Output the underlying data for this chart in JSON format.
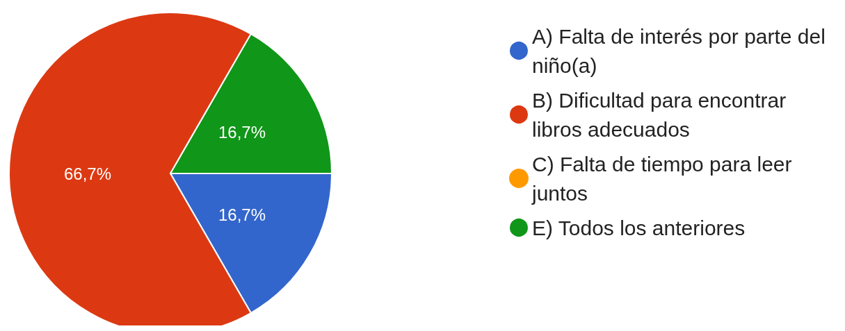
{
  "chart_data": {
    "type": "pie",
    "categories": [
      "A) Falta de interés por parte del niño(a)",
      "B) Dificultad para encontrar libros adecuados",
      "C) Falta de tiempo para leer juntos",
      "E) Todos los anteriores"
    ],
    "values": [
      16.7,
      66.7,
      0,
      16.7
    ],
    "colors": [
      "#3366cc",
      "#dc3912",
      "#ff9900",
      "#109618"
    ],
    "value_labels": [
      "16,7%",
      "66,7%",
      null,
      "16,7%"
    ],
    "legend": "right"
  }
}
